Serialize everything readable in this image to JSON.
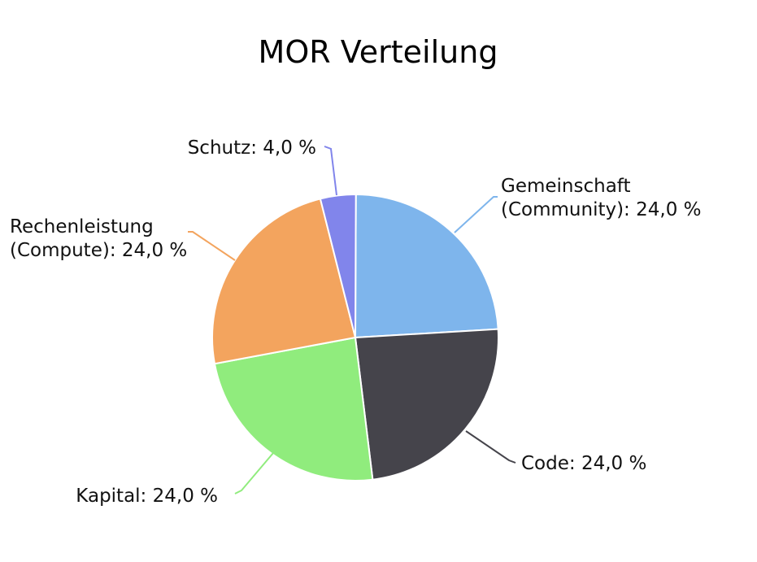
{
  "chart_data": {
    "type": "pie",
    "title": "MOR Verteilung",
    "slices": [
      {
        "name": "Gemeinschaft (Community)",
        "value": 24.0,
        "color": "#7eb5ec",
        "label_lines": [
          "Gemeinschaft",
          "(Community): 24,0 %"
        ]
      },
      {
        "name": "Code",
        "value": 24.0,
        "color": "#45444b",
        "label_lines": [
          "Code: 24,0 %"
        ]
      },
      {
        "name": "Kapital",
        "value": 24.0,
        "color": "#90ec7d",
        "label_lines": [
          "Kapital: 24,0 %"
        ]
      },
      {
        "name": "Rechenleistung (Compute)",
        "value": 24.0,
        "color": "#f3a45e",
        "label_lines": [
          "Rechenleistung",
          "(Compute): 24,0 %"
        ]
      },
      {
        "name": "Schutz",
        "value": 4.0,
        "color": "#8185eb",
        "label_lines": [
          "Schutz: 4,0 %"
        ]
      }
    ]
  }
}
